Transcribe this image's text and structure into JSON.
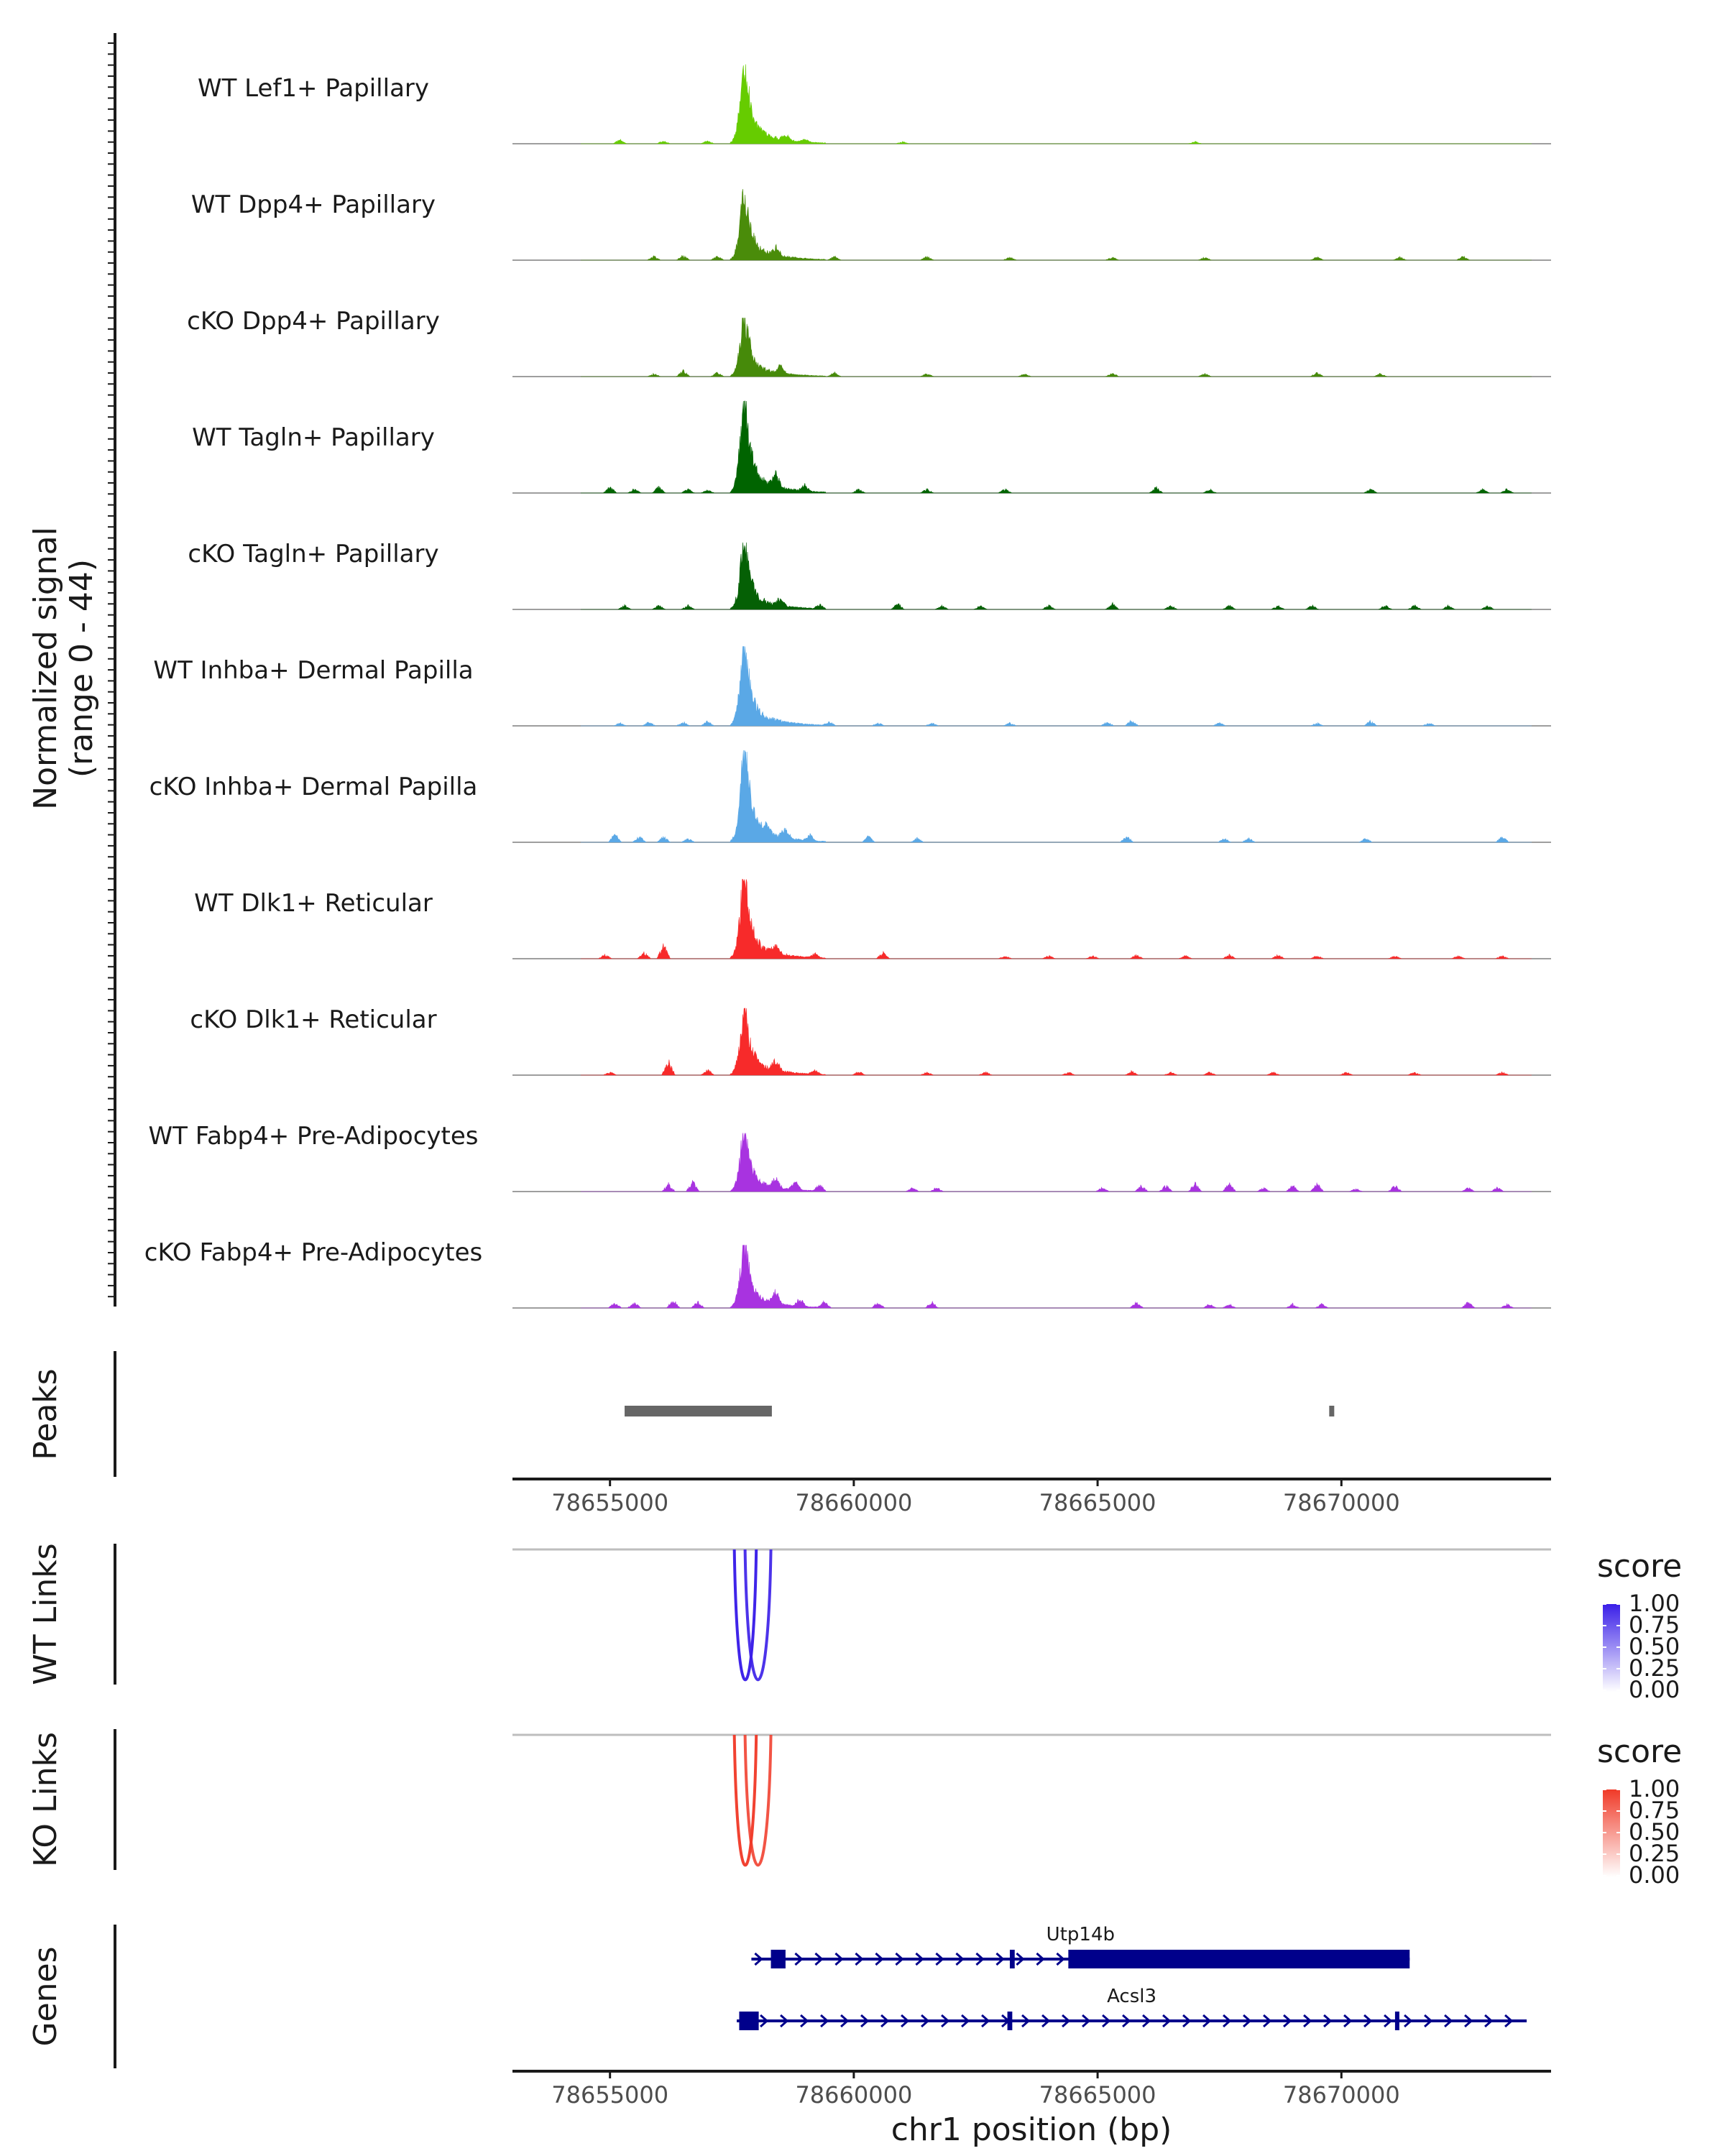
{
  "chart_data": {
    "type": "area",
    "region": "chr1",
    "xlim": [
      78653000,
      78674300
    ],
    "coverage": {
      "ylabel_line1": "Normalized signal",
      "ylabel_line2": "(range 0 - 44)",
      "ylim": [
        0,
        44
      ],
      "tracks": [
        {
          "name": "WT Lef1+ Papillary",
          "color": "#66cc00",
          "peak": 38,
          "noise": [
            [
              78655200,
              2
            ],
            [
              78656100,
              1.5
            ],
            [
              78657000,
              1.5
            ],
            [
              78658600,
              3
            ],
            [
              78659000,
              1.5
            ],
            [
              78661000,
              1
            ],
            [
              78667000,
              1
            ]
          ]
        },
        {
          "name": "WT Dpp4+ Papillary",
          "color": "#4a8c0a",
          "peak": 34,
          "noise": [
            [
              78655900,
              2
            ],
            [
              78656500,
              2.5
            ],
            [
              78657200,
              2
            ],
            [
              78658400,
              4
            ],
            [
              78659600,
              2
            ],
            [
              78661500,
              2
            ],
            [
              78663200,
              1.5
            ],
            [
              78665300,
              1.5
            ],
            [
              78667200,
              1.5
            ],
            [
              78669500,
              1.5
            ],
            [
              78671200,
              1.5
            ],
            [
              78672500,
              2
            ]
          ]
        },
        {
          "name": "cKO Dpp4+ Papillary",
          "color": "#468a0a",
          "peak": 28,
          "noise": [
            [
              78655900,
              1.5
            ],
            [
              78656500,
              3
            ],
            [
              78657200,
              2
            ],
            [
              78658500,
              4
            ],
            [
              78659600,
              2
            ],
            [
              78661500,
              1.5
            ],
            [
              78663500,
              1.5
            ],
            [
              78665300,
              2
            ],
            [
              78667200,
              1.5
            ],
            [
              78669500,
              2
            ],
            [
              78670800,
              1.5
            ]
          ]
        },
        {
          "name": "WT Tagln+ Papillary",
          "color": "#006400",
          "peak": 44,
          "noise": [
            [
              78655000,
              3
            ],
            [
              78655500,
              2
            ],
            [
              78656000,
              3
            ],
            [
              78656600,
              2
            ],
            [
              78657000,
              1.5
            ],
            [
              78658400,
              7
            ],
            [
              78659000,
              3
            ],
            [
              78660100,
              2
            ],
            [
              78661500,
              2
            ],
            [
              78663100,
              2
            ],
            [
              78666200,
              3
            ],
            [
              78667300,
              2
            ],
            [
              78670600,
              2
            ],
            [
              78672900,
              2
            ],
            [
              78673400,
              2
            ]
          ]
        },
        {
          "name": "cKO Tagln+ Papillary",
          "color": "#056005",
          "peak": 32,
          "noise": [
            [
              78655300,
              2
            ],
            [
              78656000,
              2
            ],
            [
              78656600,
              2
            ],
            [
              78658500,
              4
            ],
            [
              78659300,
              2
            ],
            [
              78660900,
              3
            ],
            [
              78661800,
              2
            ],
            [
              78662600,
              2
            ],
            [
              78664000,
              2
            ],
            [
              78665300,
              3
            ],
            [
              78666500,
              2
            ],
            [
              78667700,
              2
            ],
            [
              78668700,
              2
            ],
            [
              78669400,
              2
            ],
            [
              78670900,
              2
            ],
            [
              78671500,
              2
            ],
            [
              78672200,
              2
            ],
            [
              78673000,
              2
            ]
          ]
        },
        {
          "name": "WT Inhba+ Dermal Papilla",
          "color": "#5aa8e6",
          "peak": 38,
          "noise": [
            [
              78655200,
              1.5
            ],
            [
              78655800,
              2
            ],
            [
              78656500,
              2
            ],
            [
              78657000,
              2.5
            ],
            [
              78659500,
              2
            ],
            [
              78660500,
              1.5
            ],
            [
              78661600,
              1.5
            ],
            [
              78663200,
              1.5
            ],
            [
              78665200,
              2
            ],
            [
              78665700,
              3
            ],
            [
              78667500,
              1.5
            ],
            [
              78669500,
              1.5
            ],
            [
              78670600,
              2.5
            ],
            [
              78671800,
              1.5
            ]
          ]
        },
        {
          "name": "cKO Inhba+ Dermal Papilla",
          "color": "#5aa8e6",
          "peak": 44,
          "noise": [
            [
              78655100,
              4
            ],
            [
              78655600,
              3
            ],
            [
              78656100,
              3
            ],
            [
              78656600,
              2
            ],
            [
              78658200,
              4
            ],
            [
              78658600,
              5
            ],
            [
              78659100,
              3
            ],
            [
              78660300,
              3
            ],
            [
              78661300,
              2
            ],
            [
              78665600,
              3
            ],
            [
              78667600,
              2
            ],
            [
              78668100,
              2
            ],
            [
              78670500,
              2
            ],
            [
              78673300,
              3
            ]
          ]
        },
        {
          "name": "WT Dlk1+ Reticular",
          "color": "#f72a2a",
          "peak": 38,
          "noise": [
            [
              78654900,
              2
            ],
            [
              78655700,
              3
            ],
            [
              78656100,
              7
            ],
            [
              78658400,
              4
            ],
            [
              78659200,
              2
            ],
            [
              78660600,
              3
            ],
            [
              78663100,
              1.5
            ],
            [
              78664000,
              1.5
            ],
            [
              78664900,
              1.5
            ],
            [
              78665800,
              2
            ],
            [
              78666800,
              1.5
            ],
            [
              78667700,
              2
            ],
            [
              78668700,
              2
            ],
            [
              78669500,
              1.5
            ],
            [
              78671100,
              1.5
            ],
            [
              78672400,
              1.5
            ],
            [
              78673300,
              1.5
            ]
          ]
        },
        {
          "name": "cKO Dlk1+ Reticular",
          "color": "#f72a2a",
          "peak": 32,
          "noise": [
            [
              78655000,
              1.5
            ],
            [
              78656200,
              7
            ],
            [
              78657000,
              3
            ],
            [
              78658400,
              5
            ],
            [
              78659200,
              2
            ],
            [
              78660100,
              2
            ],
            [
              78661500,
              1.5
            ],
            [
              78662700,
              1.5
            ],
            [
              78664400,
              1.5
            ],
            [
              78665700,
              2
            ],
            [
              78666500,
              1.5
            ],
            [
              78667300,
              1.5
            ],
            [
              78668600,
              1.5
            ],
            [
              78670100,
              1.5
            ],
            [
              78671500,
              1.5
            ],
            [
              78673300,
              1.5
            ]
          ]
        },
        {
          "name": "WT Fabp4+ Pre-Adipocytes",
          "color": "#a833e0",
          "peak": 28,
          "noise": [
            [
              78656200,
              4
            ],
            [
              78656700,
              5
            ],
            [
              78658400,
              5
            ],
            [
              78658800,
              4
            ],
            [
              78659300,
              3
            ],
            [
              78661200,
              2
            ],
            [
              78661700,
              2
            ],
            [
              78665100,
              2
            ],
            [
              78665900,
              3
            ],
            [
              78666400,
              3
            ],
            [
              78667000,
              4
            ],
            [
              78667700,
              4
            ],
            [
              78668400,
              2
            ],
            [
              78669000,
              3
            ],
            [
              78669500,
              4
            ],
            [
              78670300,
              1.5
            ],
            [
              78671100,
              3
            ],
            [
              78672600,
              2
            ],
            [
              78673200,
              2
            ]
          ]
        },
        {
          "name": "cKO Fabp4+ Pre-Adipocytes",
          "color": "#a833e0",
          "peak": 30,
          "noise": [
            [
              78655100,
              3
            ],
            [
              78655500,
              3
            ],
            [
              78656300,
              4
            ],
            [
              78656800,
              3
            ],
            [
              78658400,
              6
            ],
            [
              78658900,
              4
            ],
            [
              78659400,
              3
            ],
            [
              78660500,
              3
            ],
            [
              78661600,
              3
            ],
            [
              78665800,
              3
            ],
            [
              78667300,
              2
            ],
            [
              78667700,
              2
            ],
            [
              78669000,
              2
            ],
            [
              78669600,
              2
            ],
            [
              78672600,
              3
            ],
            [
              78673400,
              2
            ]
          ]
        }
      ]
    },
    "peaks": {
      "label": "Peaks",
      "color": "#666666",
      "ranges": [
        [
          78655300,
          78658320
        ],
        [
          78669750,
          78669850
        ]
      ]
    },
    "xticks": [
      78655000,
      78660000,
      78665000,
      78670000
    ],
    "xtick_labels": [
      "78655000",
      "78660000",
      "78665000",
      "78670000"
    ],
    "links": [
      {
        "label": "WT Links",
        "arcs": [
          {
            "start": 78657770,
            "end": 78658300,
            "score": 0.8
          },
          {
            "start": 78657550,
            "end": 78658000,
            "score": 0.95
          }
        ],
        "legend": {
          "title": "score",
          "ticks": [
            "1.00",
            "0.75",
            "0.50",
            "0.25",
            "0.00"
          ],
          "high_color": "#3a1fe8",
          "low_color": "#ffffff"
        }
      },
      {
        "label": "KO Links",
        "arcs": [
          {
            "start": 78657770,
            "end": 78658300,
            "score": 0.7
          },
          {
            "start": 78657550,
            "end": 78658000,
            "score": 0.9
          }
        ],
        "legend": {
          "title": "score",
          "ticks": [
            "1.00",
            "0.75",
            "0.50",
            "0.25",
            "0.00"
          ],
          "high_color": "#f03a28",
          "low_color": "#ffffff"
        }
      }
    ],
    "genes": {
      "label": "Genes",
      "color": "#00008b",
      "items": [
        {
          "name": "Utp14b",
          "start": 78657900,
          "end": 78671400,
          "exons": [
            [
              78658300,
              78658600
            ],
            [
              78663200,
              78663300
            ],
            [
              78664400,
              78671400
            ]
          ]
        },
        {
          "name": "Acsl3",
          "start": 78657600,
          "end": 78673800,
          "exons": [
            [
              78657650,
              78658050
            ],
            [
              78663150,
              78663250
            ],
            [
              78671100,
              78671150
            ]
          ]
        }
      ]
    },
    "xlabel": "chr1 position (bp)"
  }
}
